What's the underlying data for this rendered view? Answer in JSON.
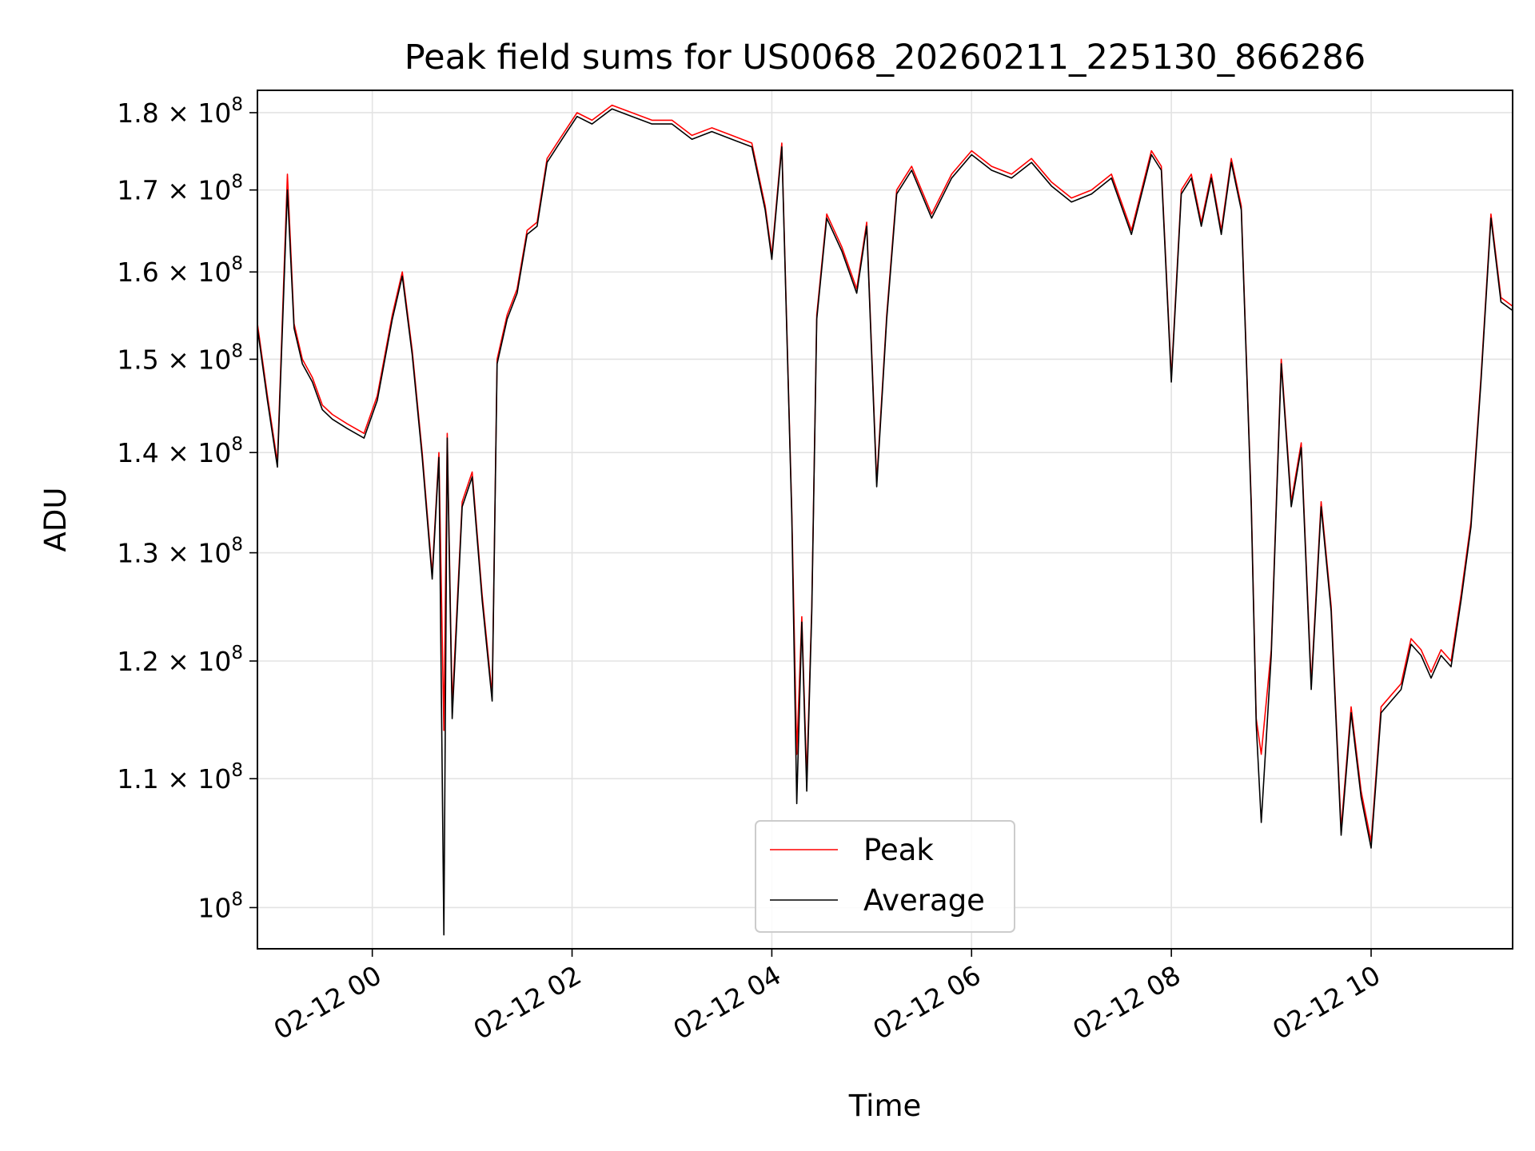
{
  "chart_data": {
    "type": "line",
    "title": "Peak field sums for US0068_20260211_225130_866286",
    "xlabel": "Time",
    "ylabel": "ADU",
    "yscale": "log",
    "xlim": [
      "2026-02-11 22:51",
      "2026-02-12 11:25"
    ],
    "ylim": [
      97000000,
      183000000
    ],
    "grid": true,
    "legend": "lower center",
    "xticks": [
      {
        "value": "2026-02-12 00:00",
        "label": "02-12 00"
      },
      {
        "value": "2026-02-12 02:00",
        "label": "02-12 02"
      },
      {
        "value": "2026-02-12 04:00",
        "label": "02-12 04"
      },
      {
        "value": "2026-02-12 06:00",
        "label": "02-12 06"
      },
      {
        "value": "2026-02-12 08:00",
        "label": "02-12 08"
      },
      {
        "value": "2026-02-12 10:00",
        "label": "02-12 10"
      }
    ],
    "yticks": [
      {
        "value": 100000000,
        "base": "10",
        "exp": "8"
      },
      {
        "value": 110000000,
        "base": "1.1 × 10",
        "exp": "8"
      },
      {
        "value": 120000000,
        "base": "1.2 × 10",
        "exp": "8"
      },
      {
        "value": 130000000,
        "base": "1.3 × 10",
        "exp": "8"
      },
      {
        "value": 140000000,
        "base": "1.4 × 10",
        "exp": "8"
      },
      {
        "value": 150000000,
        "base": "1.5 × 10",
        "exp": "8"
      },
      {
        "value": 160000000,
        "base": "1.6 × 10",
        "exp": "8"
      },
      {
        "value": 170000000,
        "base": "1.7 × 10",
        "exp": "8"
      },
      {
        "value": 180000000,
        "base": "1.8 × 10",
        "exp": "8"
      }
    ],
    "series": [
      {
        "name": "Peak",
        "color": "#ff0000"
      },
      {
        "name": "Average",
        "color": "#000000"
      }
    ],
    "x": [
      "2026-02-11 22:51",
      "2026-02-11 22:57",
      "2026-02-11 23:03",
      "2026-02-11 23:09",
      "2026-02-11 23:13",
      "2026-02-11 23:18",
      "2026-02-11 23:24",
      "2026-02-11 23:30",
      "2026-02-11 23:36",
      "2026-02-11 23:45",
      "2026-02-11 23:55",
      "2026-02-12 00:03",
      "2026-02-12 00:12",
      "2026-02-12 00:18",
      "2026-02-12 00:24",
      "2026-02-12 00:30",
      "2026-02-12 00:36",
      "2026-02-12 00:40",
      "2026-02-12 00:43",
      "2026-02-12 00:45",
      "2026-02-12 00:48",
      "2026-02-12 00:54",
      "2026-02-12 01:00",
      "2026-02-12 01:06",
      "2026-02-12 01:12",
      "2026-02-12 01:15",
      "2026-02-12 01:21",
      "2026-02-12 01:27",
      "2026-02-12 01:33",
      "2026-02-12 01:39",
      "2026-02-12 01:45",
      "2026-02-12 01:51",
      "2026-02-12 01:57",
      "2026-02-12 02:03",
      "2026-02-12 02:12",
      "2026-02-12 02:24",
      "2026-02-12 02:36",
      "2026-02-12 02:48",
      "2026-02-12 03:00",
      "2026-02-12 03:12",
      "2026-02-12 03:24",
      "2026-02-12 03:36",
      "2026-02-12 03:48",
      "2026-02-12 03:56",
      "2026-02-12 04:00",
      "2026-02-12 04:06",
      "2026-02-12 04:12",
      "2026-02-12 04:15",
      "2026-02-12 04:18",
      "2026-02-12 04:21",
      "2026-02-12 04:24",
      "2026-02-12 04:27",
      "2026-02-12 04:33",
      "2026-02-12 04:42",
      "2026-02-12 04:51",
      "2026-02-12 04:57",
      "2026-02-12 05:03",
      "2026-02-12 05:09",
      "2026-02-12 05:15",
      "2026-02-12 05:24",
      "2026-02-12 05:36",
      "2026-02-12 05:48",
      "2026-02-12 06:00",
      "2026-02-12 06:12",
      "2026-02-12 06:24",
      "2026-02-12 06:36",
      "2026-02-12 06:48",
      "2026-02-12 07:00",
      "2026-02-12 07:12",
      "2026-02-12 07:24",
      "2026-02-12 07:36",
      "2026-02-12 07:48",
      "2026-02-12 07:54",
      "2026-02-12 08:00",
      "2026-02-12 08:06",
      "2026-02-12 08:12",
      "2026-02-12 08:18",
      "2026-02-12 08:24",
      "2026-02-12 08:30",
      "2026-02-12 08:36",
      "2026-02-12 08:42",
      "2026-02-12 08:48",
      "2026-02-12 08:51",
      "2026-02-12 08:54",
      "2026-02-12 09:00",
      "2026-02-12 09:06",
      "2026-02-12 09:12",
      "2026-02-12 09:18",
      "2026-02-12 09:24",
      "2026-02-12 09:30",
      "2026-02-12 09:36",
      "2026-02-12 09:42",
      "2026-02-12 09:48",
      "2026-02-12 09:54",
      "2026-02-12 10:00",
      "2026-02-12 10:06",
      "2026-02-12 10:12",
      "2026-02-12 10:18",
      "2026-02-12 10:24",
      "2026-02-12 10:30",
      "2026-02-12 10:36",
      "2026-02-12 10:42",
      "2026-02-12 10:48",
      "2026-02-12 10:54",
      "2026-02-12 11:00",
      "2026-02-12 11:06",
      "2026-02-12 11:12",
      "2026-02-12 11:18",
      "2026-02-12 11:25"
    ],
    "peak": [
      154000000,
      146000000,
      139000000,
      172000000,
      154000000,
      150000000,
      148000000,
      145000000,
      144000000,
      143000000,
      142000000,
      146000000,
      155000000,
      160000000,
      151000000,
      140000000,
      128000000,
      140000000,
      114000000,
      142000000,
      116000000,
      135000000,
      138000000,
      126000000,
      117000000,
      150000000,
      155000000,
      158000000,
      165000000,
      166000000,
      174000000,
      176000000,
      178000000,
      180000000,
      179000000,
      181000000,
      180000000,
      179000000,
      179000000,
      177000000,
      178000000,
      177000000,
      176000000,
      168000000,
      162000000,
      176000000,
      134000000,
      112000000,
      124000000,
      110000000,
      125000000,
      155000000,
      167000000,
      163000000,
      158000000,
      166000000,
      137000000,
      155000000,
      170000000,
      173000000,
      167000000,
      172000000,
      175000000,
      173000000,
      172000000,
      174000000,
      171000000,
      169000000,
      170000000,
      172000000,
      165000000,
      175000000,
      173000000,
      148000000,
      170000000,
      172000000,
      166000000,
      172000000,
      165000000,
      174000000,
      168000000,
      135000000,
      115000000,
      112000000,
      121000000,
      150000000,
      135000000,
      141000000,
      118000000,
      135000000,
      125000000,
      106000000,
      116000000,
      109000000,
      105000000,
      116000000,
      117000000,
      118000000,
      122000000,
      121000000,
      119000000,
      121000000,
      120000000,
      126000000,
      133000000,
      148000000,
      167000000,
      157000000,
      156000000
    ],
    "average": [
      153500000,
      145500000,
      138500000,
      170000000,
      153500000,
      149500000,
      147500000,
      144500000,
      143500000,
      142500000,
      141500000,
      145500000,
      154500000,
      159500000,
      150500000,
      139500000,
      127500000,
      139500000,
      98000000,
      141500000,
      115000000,
      134500000,
      137500000,
      125500000,
      116500000,
      149500000,
      154500000,
      157500000,
      164500000,
      165500000,
      173500000,
      175500000,
      177500000,
      179500000,
      178500000,
      180500000,
      179500000,
      178500000,
      178500000,
      176500000,
      177500000,
      176500000,
      175500000,
      167500000,
      161500000,
      175500000,
      133500000,
      108000000,
      123500000,
      109000000,
      124500000,
      154500000,
      166500000,
      162500000,
      157500000,
      165500000,
      136500000,
      154500000,
      169500000,
      172500000,
      166500000,
      171500000,
      174500000,
      172500000,
      171500000,
      173500000,
      170500000,
      168500000,
      169500000,
      171500000,
      164500000,
      174500000,
      172500000,
      147500000,
      169500000,
      171500000,
      165500000,
      171500000,
      164500000,
      173500000,
      167500000,
      134500000,
      114500000,
      106500000,
      120500000,
      149500000,
      134500000,
      140500000,
      117500000,
      134500000,
      124500000,
      105500000,
      115500000,
      108500000,
      104500000,
      115500000,
      116500000,
      117500000,
      121500000,
      120500000,
      118500000,
      120500000,
      119500000,
      125500000,
      132500000,
      147500000,
      166500000,
      156500000,
      155500000
    ]
  }
}
